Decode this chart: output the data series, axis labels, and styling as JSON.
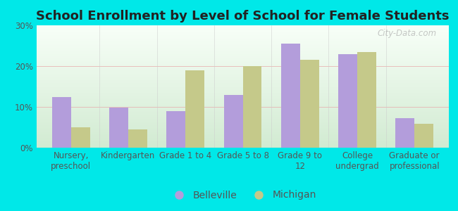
{
  "title": "School Enrollment by Level of School for Female Students",
  "categories": [
    "Nursery,\npreschool",
    "Kindergarten",
    "Grade 1 to 4",
    "Grade 5 to 8",
    "Grade 9 to\n12",
    "College\nundergrad",
    "Graduate or\nprofessional"
  ],
  "belleville": [
    12.5,
    9.8,
    9.0,
    13.0,
    25.5,
    23.0,
    7.2
  ],
  "michigan": [
    5.0,
    4.5,
    19.0,
    20.0,
    21.5,
    23.5,
    5.8
  ],
  "belleville_color": "#b39ddb",
  "michigan_color": "#c5c98a",
  "background_color": "#00e8e8",
  "plot_bg_top": "#f8fff8",
  "plot_bg_bottom": "#d8f0d8",
  "ylim": [
    0,
    30
  ],
  "yticks": [
    0,
    10,
    20,
    30
  ],
  "ytick_labels": [
    "0%",
    "10%",
    "20%",
    "30%"
  ],
  "legend_belleville": "Belleville",
  "legend_michigan": "Michigan",
  "watermark": "City-Data.com",
  "bar_width": 0.33,
  "title_fontsize": 13,
  "tick_fontsize": 8.5,
  "legend_fontsize": 10
}
